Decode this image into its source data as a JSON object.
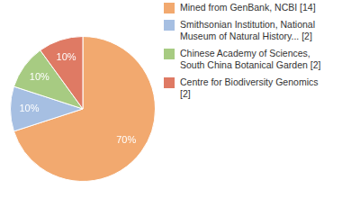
{
  "chart_data": {
    "type": "pie",
    "categories": [
      "Mined from GenBank, NCBI [14]",
      "Smithsonian Institution, National Museum of Natural History... [2]",
      "Chinese Academy of Sciences, South China Botanical Garden [2]",
      "Centre for Biodiversity Genomics [2]"
    ],
    "values": [
      70,
      10,
      10,
      10
    ],
    "value_labels": [
      "70%",
      "10%",
      "10%",
      "10%"
    ],
    "colors": [
      "#f2a96f",
      "#a6bfe2",
      "#a7cb82",
      "#df7a64"
    ],
    "data_labels": true,
    "legend": "right"
  }
}
